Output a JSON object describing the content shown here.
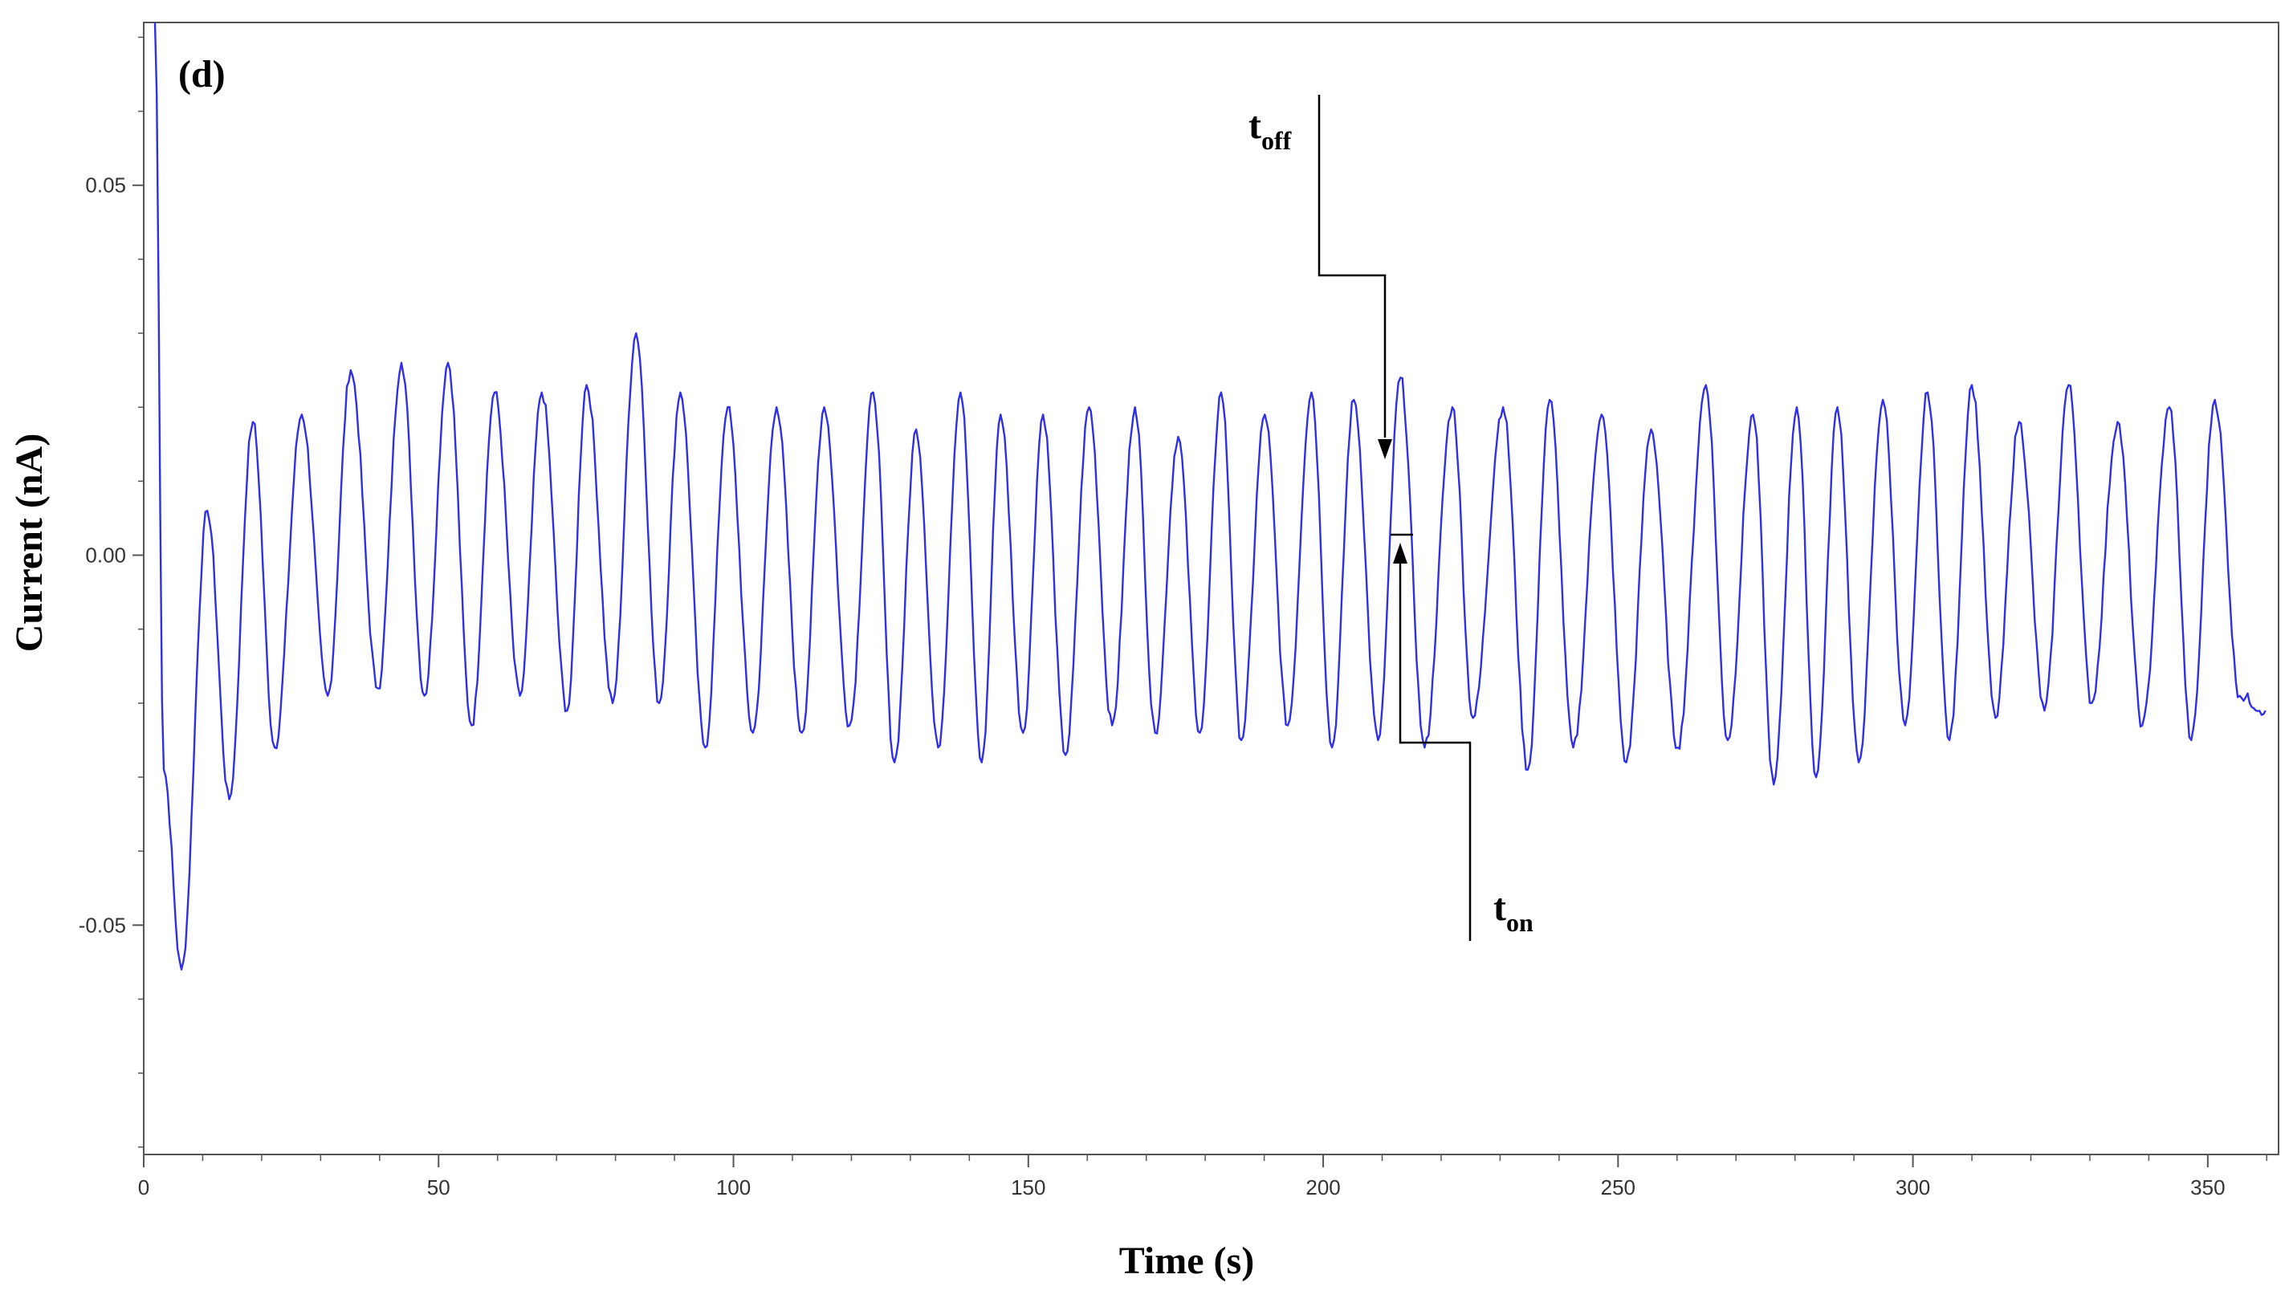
{
  "chart_data": {
    "type": "line",
    "panel_label": "(d)",
    "xlabel": "Time (s)",
    "ylabel": "Current (nA)",
    "xlim": [
      0,
      362
    ],
    "ylim": [
      -0.081,
      0.072
    ],
    "xticks": [
      0,
      50,
      100,
      150,
      200,
      250,
      300,
      350
    ],
    "xtick_labels": [
      "0",
      "50",
      "100",
      "150",
      "200",
      "250",
      "300",
      "350"
    ],
    "yticks": [
      0.05,
      0.0,
      -0.05
    ],
    "ytick_labels": [
      "0.05",
      "0.00",
      "-0.05"
    ],
    "grid": false,
    "line_color": "#2f2fe8",
    "annotations": [
      {
        "text": "t",
        "sub": "off",
        "x": 209,
        "y": 0.012
      },
      {
        "text": "t",
        "sub": "on",
        "x": 213,
        "y": 0.0
      }
    ],
    "series": [
      {
        "peaks": [
          [
            1.9,
            0.072
          ],
          [
            10.8,
            0.006
          ],
          [
            18.5,
            0.018
          ],
          [
            26.8,
            0.019
          ],
          [
            35.1,
            0.025
          ],
          [
            43.7,
            0.026
          ],
          [
            51.6,
            0.026
          ],
          [
            59.5,
            0.022
          ],
          [
            67.5,
            0.022
          ],
          [
            75.1,
            0.023
          ],
          [
            83.5,
            0.03
          ],
          [
            91.0,
            0.022
          ],
          [
            99.0,
            0.02
          ],
          [
            107.3,
            0.02
          ],
          [
            115.4,
            0.02
          ],
          [
            123.7,
            0.022
          ],
          [
            131.0,
            0.017
          ],
          [
            138.5,
            0.022
          ],
          [
            145.3,
            0.019
          ],
          [
            152.5,
            0.019
          ],
          [
            160.3,
            0.02
          ],
          [
            168.1,
            0.02
          ],
          [
            175.4,
            0.016
          ],
          [
            182.7,
            0.022
          ],
          [
            190.1,
            0.019
          ],
          [
            198.0,
            0.022
          ],
          [
            205.2,
            0.021
          ],
          [
            213.1,
            0.024
          ],
          [
            221.9,
            0.02
          ],
          [
            230.5,
            0.02
          ],
          [
            238.4,
            0.021
          ],
          [
            247.2,
            0.019
          ],
          [
            255.6,
            0.017
          ],
          [
            264.9,
            0.023
          ],
          [
            272.9,
            0.019
          ],
          [
            280.3,
            0.02
          ],
          [
            287.2,
            0.02
          ],
          [
            294.9,
            0.021
          ],
          [
            302.5,
            0.022
          ],
          [
            310.0,
            0.023
          ],
          [
            318.0,
            0.018
          ],
          [
            326.4,
            0.023
          ],
          [
            334.7,
            0.018
          ],
          [
            343.5,
            0.02
          ],
          [
            351.2,
            0.021
          ]
        ],
        "troughs": [
          [
            3.4,
            -0.029
          ],
          [
            6.4,
            -0.056
          ],
          [
            14.5,
            -0.033
          ],
          [
            22.2,
            -0.026
          ],
          [
            31.2,
            -0.019
          ],
          [
            39.7,
            -0.018
          ],
          [
            47.6,
            -0.019
          ],
          [
            55.6,
            -0.023
          ],
          [
            63.8,
            -0.019
          ],
          [
            71.8,
            -0.021
          ],
          [
            79.5,
            -0.02
          ],
          [
            87.4,
            -0.02
          ],
          [
            95.2,
            -0.026
          ],
          [
            103.3,
            -0.024
          ],
          [
            111.6,
            -0.024
          ],
          [
            119.7,
            -0.023
          ],
          [
            127.3,
            -0.028
          ],
          [
            134.7,
            -0.026
          ],
          [
            142.1,
            -0.028
          ],
          [
            149.1,
            -0.024
          ],
          [
            156.3,
            -0.027
          ],
          [
            164.2,
            -0.023
          ],
          [
            171.5,
            -0.024
          ],
          [
            179.1,
            -0.024
          ],
          [
            186.1,
            -0.025
          ],
          [
            194.0,
            -0.023
          ],
          [
            201.5,
            -0.026
          ],
          [
            209.3,
            -0.025
          ],
          [
            217.2,
            -0.026
          ],
          [
            225.4,
            -0.022
          ],
          [
            234.7,
            -0.029
          ],
          [
            242.4,
            -0.026
          ],
          [
            251.4,
            -0.028
          ],
          [
            260.1,
            -0.026
          ],
          [
            268.6,
            -0.025
          ],
          [
            276.4,
            -0.031
          ],
          [
            283.6,
            -0.03
          ],
          [
            290.8,
            -0.028
          ],
          [
            298.7,
            -0.023
          ],
          [
            306.2,
            -0.025
          ],
          [
            314.0,
            -0.022
          ],
          [
            322.3,
            -0.021
          ],
          [
            330.3,
            -0.02
          ],
          [
            338.9,
            -0.023
          ],
          [
            347.2,
            -0.025
          ],
          [
            355.4,
            -0.019
          ],
          [
            359.8,
            -0.021
          ]
        ]
      }
    ]
  }
}
